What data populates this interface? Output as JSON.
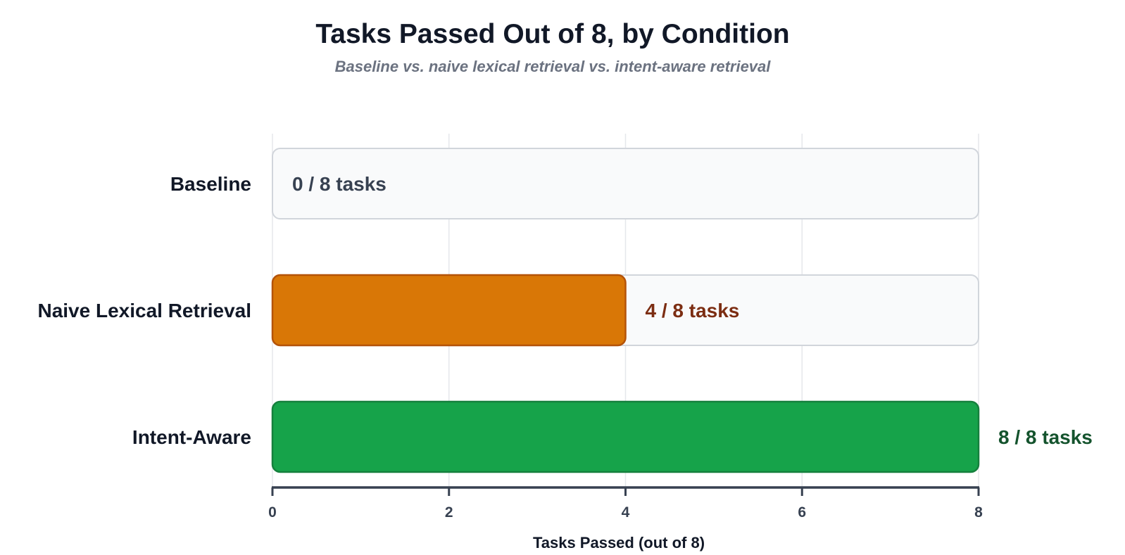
{
  "chart_data": {
    "type": "bar",
    "orientation": "horizontal",
    "title": "Tasks Passed Out of 8, by Condition",
    "subtitle": "Baseline vs. naive lexical retrieval vs. intent-aware retrieval",
    "xlabel": "Tasks Passed (out of 8)",
    "ylabel": "",
    "xlim": [
      0,
      8
    ],
    "xticks": [
      0,
      2,
      4,
      6,
      8
    ],
    "grid": true,
    "categories": [
      "Baseline",
      "Naive Lexical Retrieval",
      "Intent-Aware"
    ],
    "values": [
      0,
      4,
      8
    ],
    "value_labels": [
      "0 / 8 tasks",
      "4 / 8 tasks",
      "8 / 8 tasks"
    ],
    "bar_colors": [
      "#f9fafb",
      "#d97706",
      "#16a34a"
    ],
    "bar_stroke_colors": [
      "#d1d5db",
      "#b45309",
      "#15803d"
    ],
    "label_colors": [
      "#374151",
      "#7c2d12",
      "#14532d"
    ],
    "track_color": "#f9fafb",
    "track_stroke_color": "#d1d5db",
    "grid_color": "#e5e7eb",
    "axis_color": "#374151"
  }
}
